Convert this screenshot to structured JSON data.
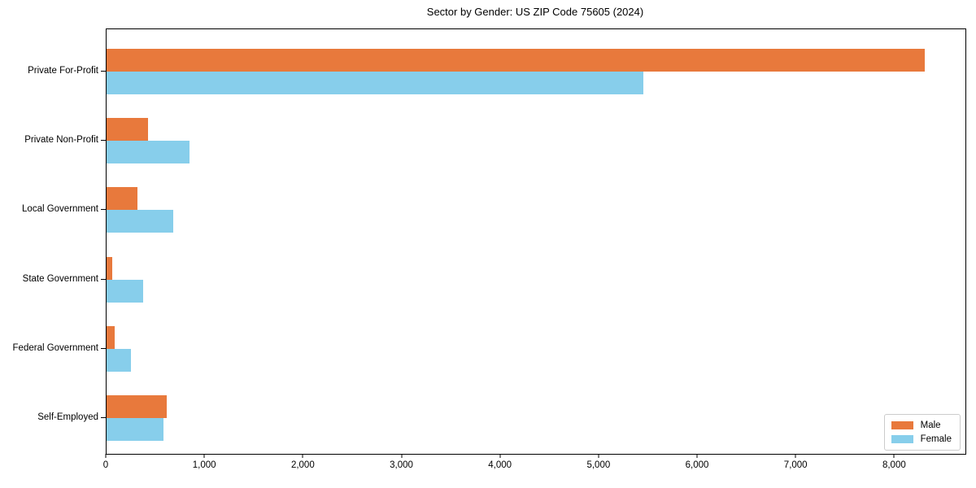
{
  "title": "Sector by Gender: US ZIP Code 75605 (2024)",
  "chart_data": {
    "type": "bar",
    "orientation": "horizontal",
    "title": "Sector by Gender: US ZIP Code 75605 (2024)",
    "categories": [
      "Private For-Profit",
      "Private Non-Profit",
      "Local Government",
      "State Government",
      "Federal Government",
      "Self-Employed"
    ],
    "series": [
      {
        "name": "Male",
        "color": "#e8793c",
        "values": [
          8300,
          420,
          310,
          60,
          85,
          610
        ]
      },
      {
        "name": "Female",
        "color": "#87ceeb",
        "values": [
          5450,
          840,
          680,
          370,
          250,
          575
        ]
      }
    ],
    "xlabel": "",
    "ylabel": "",
    "xlim": [
      0,
      8715
    ],
    "x_ticks": [
      0,
      1000,
      2000,
      3000,
      4000,
      5000,
      6000,
      7000,
      8000
    ],
    "x_tick_labels": [
      "0",
      "1,000",
      "2,000",
      "3,000",
      "4,000",
      "5,000",
      "6,000",
      "7,000",
      "8,000"
    ],
    "grid": false,
    "legend_position": "lower right",
    "background": "#ffffff",
    "spine_color": "#000000"
  }
}
